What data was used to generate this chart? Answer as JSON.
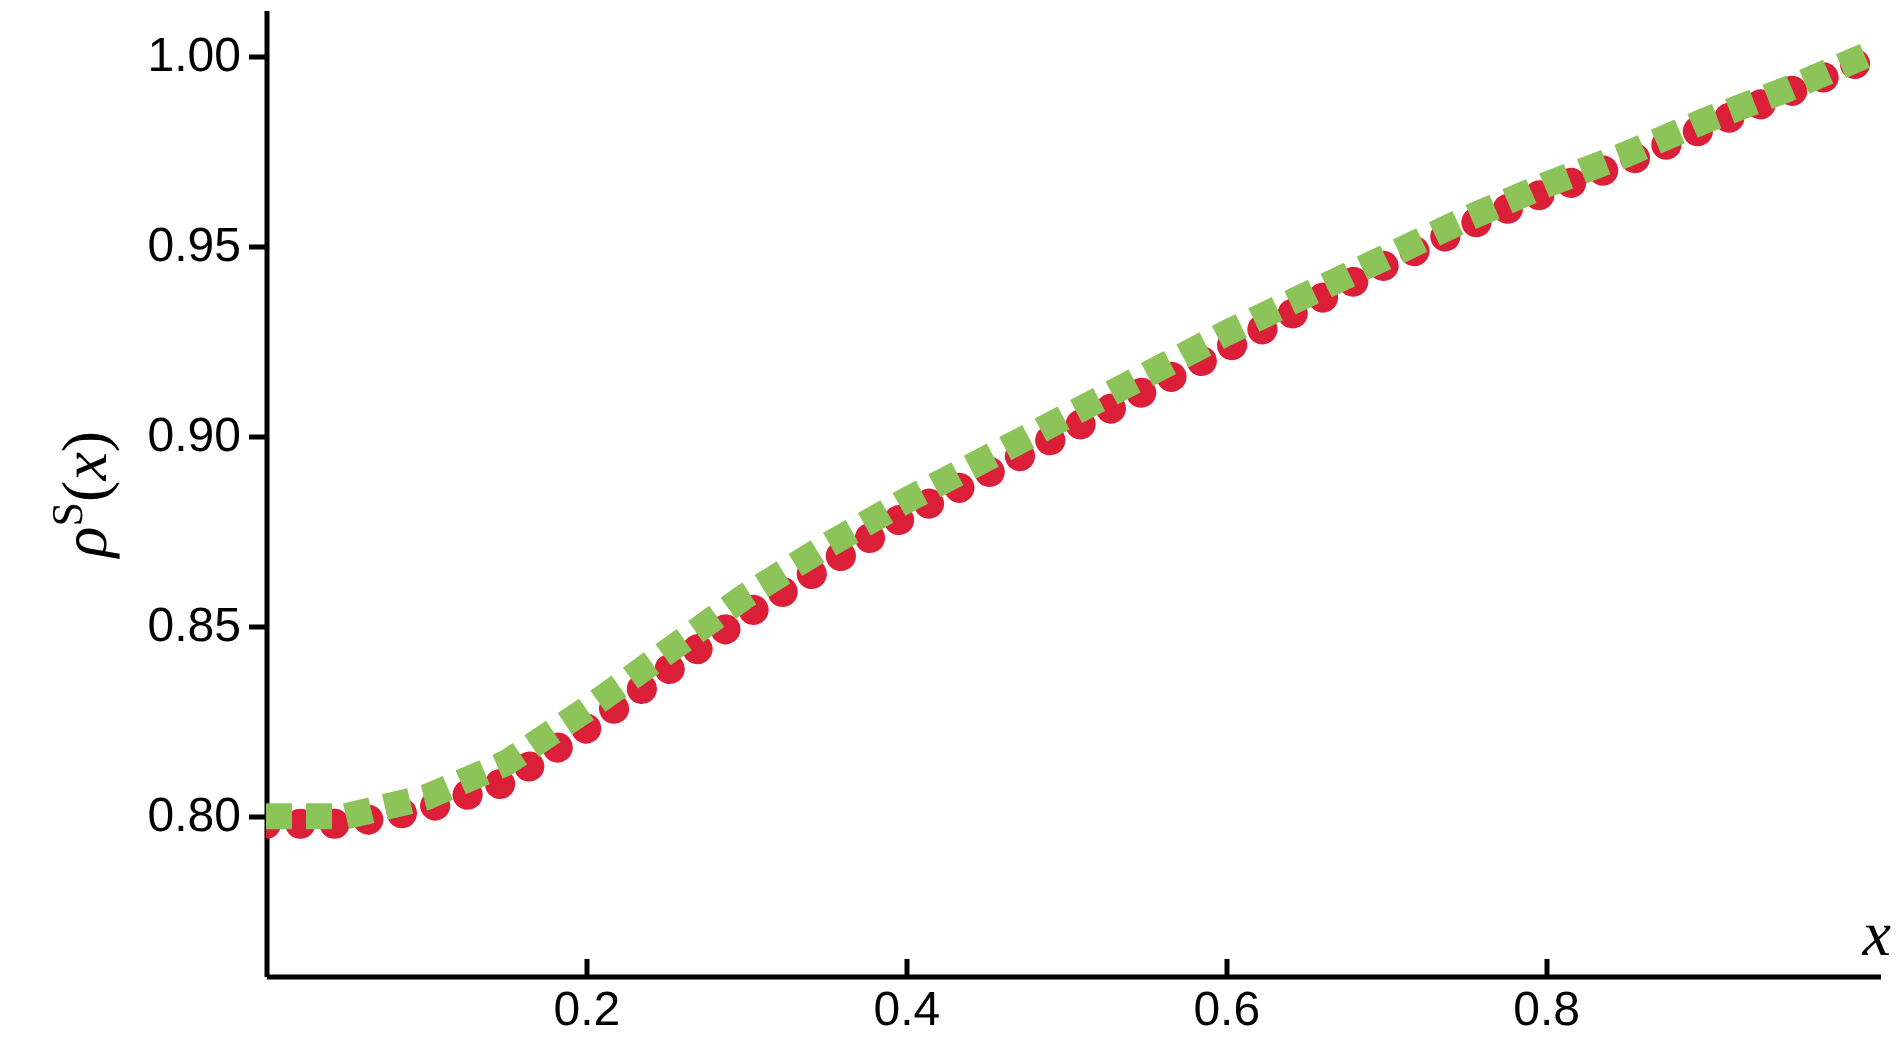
{
  "chart_data": {
    "type": "line",
    "xlabel": "x",
    "ylabel": "ρ$^{S}$(x)",
    "x": [
      0,
      0.05,
      0.1,
      0.15,
      0.2,
      0.25,
      0.3,
      0.35,
      0.4,
      0.45,
      0.5,
      0.55,
      0.6,
      0.65,
      0.7,
      0.75,
      0.8,
      0.85,
      0.9,
      0.95,
      1.0
    ],
    "series": [
      {
        "color": "#dc1f38",
        "line_style": "dotted",
        "values": [
          0.798,
          0.798,
          0.802,
          0.809,
          0.823,
          0.838,
          0.853,
          0.866,
          0.879,
          0.89,
          0.901,
          0.912,
          0.923,
          0.934,
          0.945,
          0.955,
          0.964,
          0.972,
          0.981,
          0.99,
          0.999
        ]
      },
      {
        "color": "#8cc45a",
        "line_style": "dashed",
        "values": [
          0.8,
          0.8,
          0.805,
          0.814,
          0.828,
          0.843,
          0.858,
          0.871,
          0.883,
          0.894,
          0.905,
          0.916,
          0.927,
          0.937,
          0.947,
          0.957,
          0.966,
          0.974,
          0.983,
          0.991,
          1.0
        ]
      }
    ],
    "xlim": [
      0,
      1.009
    ],
    "xticks": [
      0.2,
      0.4,
      0.6,
      0.8
    ],
    "ylim": [
      0.758,
      1.012
    ],
    "yticks": [
      {
        "value": 0.8,
        "label": "0.80"
      },
      0.85,
      {
        "value": 0.9,
        "label": "0.90"
      },
      0.95,
      {
        "value": 1,
        "label": "1.00"
      }
    ],
    "grid": false,
    "marker": "none"
  }
}
